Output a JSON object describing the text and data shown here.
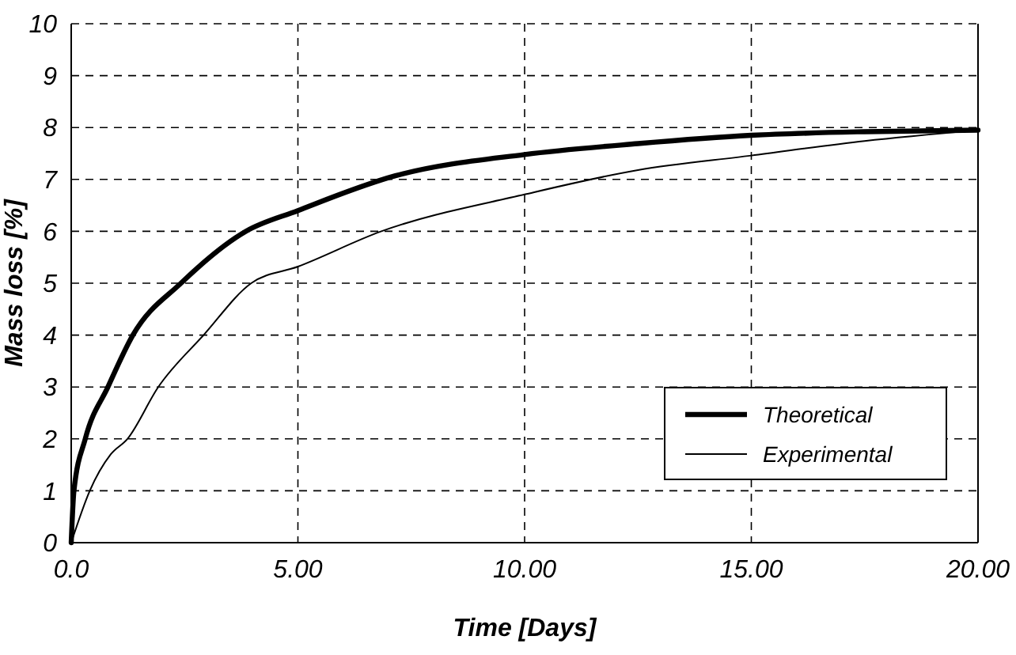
{
  "chart_data": {
    "type": "line",
    "xlabel": "Time [Days]",
    "ylabel": "Mass loss [%]",
    "xlim": [
      0,
      20
    ],
    "xticks": [
      {
        "value": 0,
        "label": "0.0"
      },
      {
        "value": 5,
        "label": "5.00"
      },
      {
        "value": 10,
        "label": "10.00"
      },
      {
        "value": 15,
        "label": "15.00"
      },
      {
        "value": 20,
        "label": "20.00"
      }
    ],
    "ylim": [
      0,
      10
    ],
    "yticks": [
      0,
      1,
      2,
      3,
      4,
      5,
      6,
      7,
      8,
      9,
      10
    ],
    "grid": true,
    "legend": "bottom right",
    "marker": "none",
    "line_style": "solid",
    "series": [
      {
        "name": "Theoretical",
        "color": "#000000",
        "x": [
          0,
          0.06,
          0.31,
          0.81,
          1.36,
          2.42,
          3.85,
          5,
          7.15,
          10,
          12.5,
          15,
          17.5,
          20
        ],
        "values": [
          0,
          1,
          2,
          3,
          4,
          5,
          6,
          6.4,
          7.07,
          7.48,
          7.69,
          7.85,
          7.92,
          7.95
        ]
      },
      {
        "name": "Experimental",
        "color": "#000000",
        "x": [
          0,
          0.41,
          0.87,
          1.24,
          1.92,
          2.92,
          3.97,
          5,
          6.84,
          10,
          12.5,
          15,
          17.5,
          20
        ],
        "values": [
          0,
          1,
          1.7,
          2,
          3,
          4,
          5,
          5.32,
          6,
          6.71,
          7.18,
          7.46,
          7.74,
          7.95
        ]
      }
    ]
  }
}
